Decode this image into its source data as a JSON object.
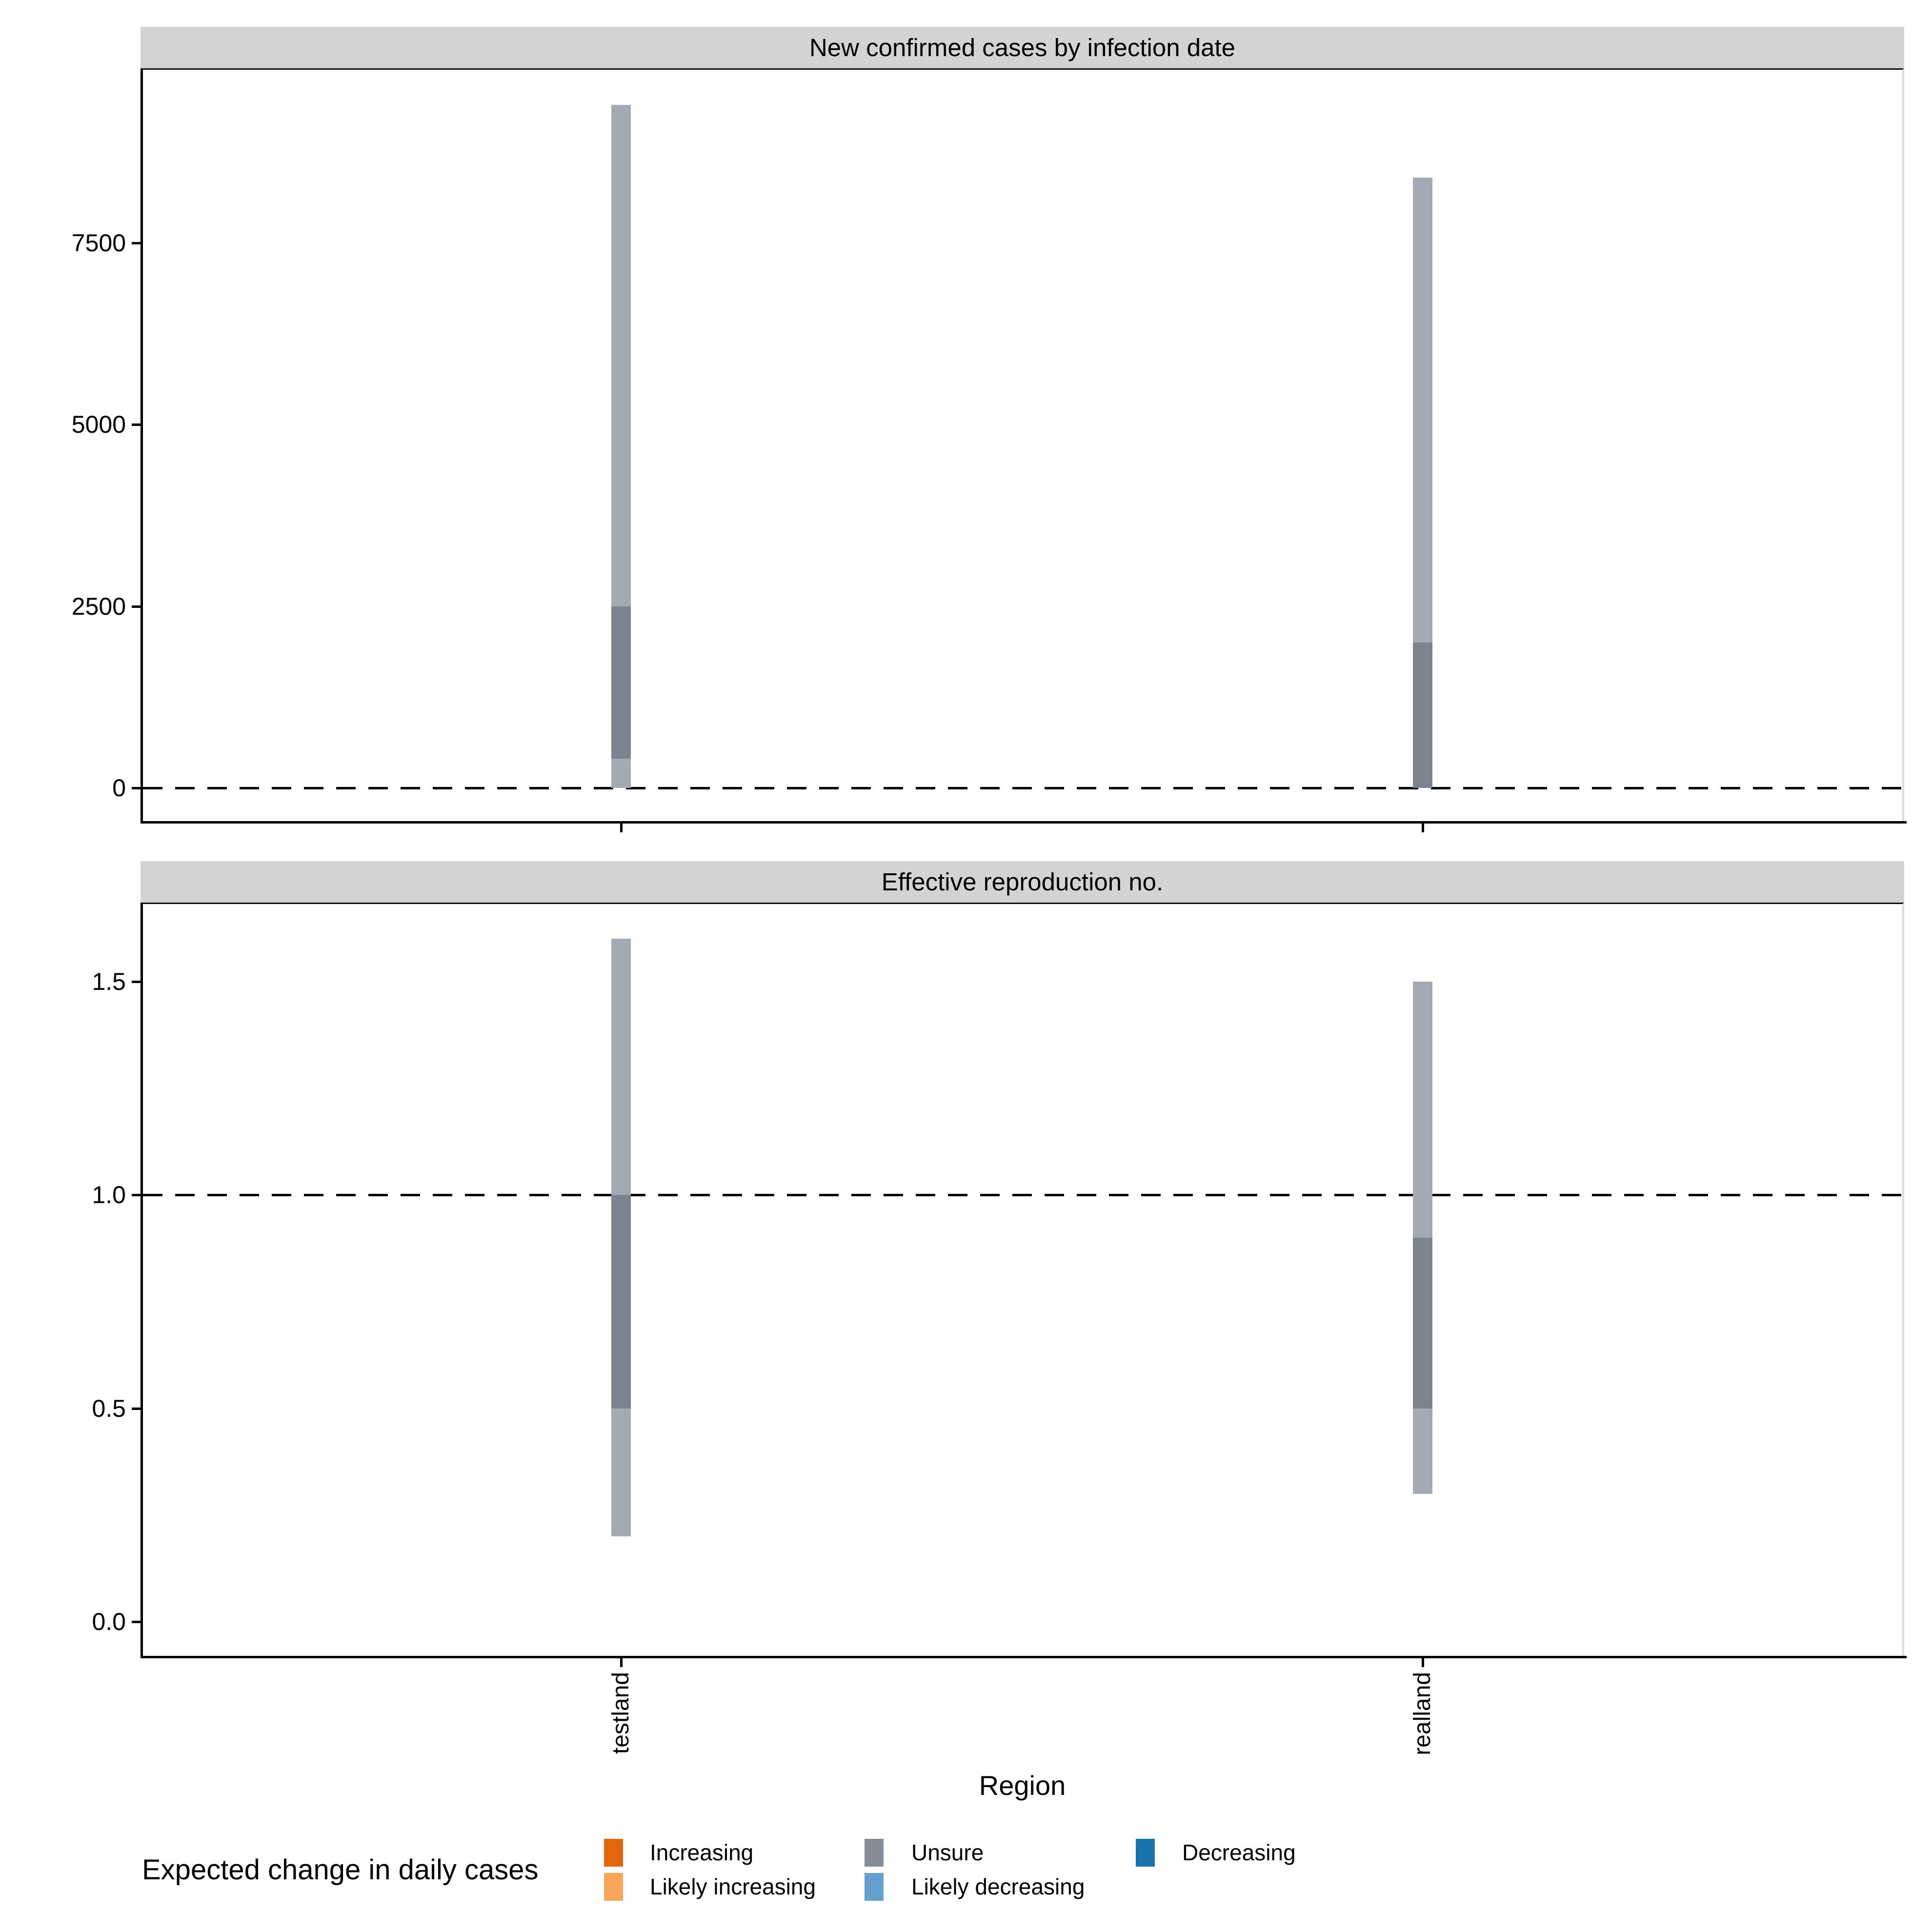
{
  "x_axis": {
    "title": "Region",
    "categories": [
      "testland",
      "realland"
    ]
  },
  "legend": {
    "title": "Expected change in daily cases",
    "items": [
      {
        "label": "Increasing",
        "color": "#E1660E"
      },
      {
        "label": "Likely increasing",
        "color": "#F9A65A"
      },
      {
        "label": "Unsure",
        "color": "#878D98"
      },
      {
        "label": "Likely decreasing",
        "color": "#65A0CD"
      },
      {
        "label": "Decreasing",
        "color": "#1B73AC"
      }
    ]
  },
  "colors": {
    "bar_outer": "#A4AAB4",
    "bar_inner": "#7C838F",
    "strip_bg": "#D3D3D3",
    "panel_border": "#DBDBDB",
    "axis": "#000000",
    "ref_line": "#000000"
  },
  "chart_data": [
    {
      "type": "bar",
      "title": "New confirmed cases by infection date",
      "xlabel": "Region",
      "ylabel": "",
      "categories": [
        "testland",
        "realland"
      ],
      "series": [
        {
          "name": "outer credible interval",
          "low": [
            0,
            0
          ],
          "high": [
            9400,
            8400
          ]
        },
        {
          "name": "inner credible interval",
          "low": [
            400,
            0
          ],
          "high": [
            2500,
            2000
          ]
        }
      ],
      "fill_category": [
        "Unsure",
        "Unsure"
      ],
      "yticks": [
        0,
        2500,
        5000,
        7500
      ],
      "ytick_labels": [
        "0",
        "2500",
        "5000",
        "7500"
      ],
      "ylim": [
        -460,
        9900
      ],
      "ref_line": 0,
      "grid": false,
      "legend_position": "bottom"
    },
    {
      "type": "bar",
      "title": "Effective reproduction no.",
      "xlabel": "Region",
      "ylabel": "",
      "categories": [
        "testland",
        "realland"
      ],
      "series": [
        {
          "name": "outer credible interval",
          "low": [
            0.2,
            0.3
          ],
          "high": [
            1.6,
            1.5
          ]
        },
        {
          "name": "inner credible interval",
          "low": [
            0.5,
            0.5
          ],
          "high": [
            1.0,
            0.9
          ]
        }
      ],
      "fill_category": [
        "Unsure",
        "Unsure"
      ],
      "yticks": [
        0.0,
        0.5,
        1.0,
        1.5
      ],
      "ytick_labels": [
        "0.0",
        "0.5",
        "1.0",
        "1.5"
      ],
      "ylim": [
        -0.08,
        1.69
      ],
      "ref_line": 1.0,
      "grid": false,
      "legend_position": "bottom"
    }
  ]
}
